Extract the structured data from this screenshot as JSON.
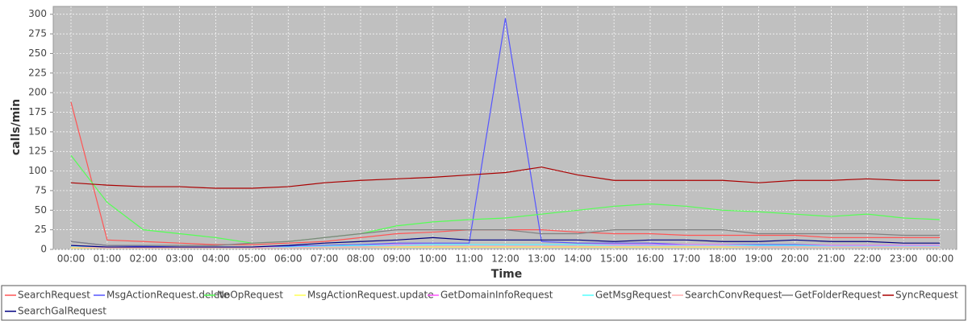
{
  "chart_data": {
    "type": "line",
    "x_label": "Time",
    "y_label": "calls/min",
    "categories": [
      "00:00",
      "01:00",
      "02:00",
      "03:00",
      "04:00",
      "05:00",
      "06:00",
      "07:00",
      "08:00",
      "09:00",
      "10:00",
      "11:00",
      "12:00",
      "13:00",
      "14:00",
      "15:00",
      "16:00",
      "17:00",
      "18:00",
      "19:00",
      "20:00",
      "21:00",
      "22:00",
      "23:00",
      "00:00"
    ],
    "ylim": [
      0,
      310
    ],
    "yticks": [
      0,
      25,
      50,
      75,
      100,
      125,
      150,
      175,
      200,
      225,
      250,
      275,
      300
    ],
    "grid": true,
    "legend": "bottom",
    "series": [
      {
        "name": "SearchRequest",
        "color": "#ff5555",
        "values": [
          188,
          12,
          10,
          8,
          6,
          6,
          8,
          10,
          15,
          20,
          22,
          25,
          25,
          25,
          22,
          20,
          20,
          18,
          18,
          18,
          18,
          15,
          15,
          15,
          15
        ]
      },
      {
        "name": "MsgActionRequest.delete",
        "color": "#5555ff",
        "values": [
          10,
          5,
          4,
          3,
          3,
          3,
          4,
          5,
          6,
          8,
          8,
          8,
          295,
          10,
          8,
          8,
          8,
          6,
          6,
          6,
          6,
          5,
          5,
          5,
          5
        ]
      },
      {
        "name": "NoOpRequest",
        "color": "#55ff55",
        "values": [
          120,
          60,
          25,
          20,
          15,
          8,
          10,
          15,
          20,
          30,
          35,
          38,
          40,
          45,
          50,
          55,
          58,
          55,
          50,
          48,
          45,
          42,
          45,
          40,
          38
        ]
      },
      {
        "name": "MsgActionRequest.update",
        "color": "#ffff55",
        "values": [
          2,
          2,
          2,
          2,
          2,
          2,
          3,
          3,
          3,
          3,
          3,
          3,
          3,
          3,
          3,
          3,
          3,
          3,
          3,
          3,
          3,
          3,
          3,
          3,
          3
        ]
      },
      {
        "name": "GetDomainInfoRequest",
        "color": "#ff55ff",
        "values": [
          5,
          3,
          3,
          3,
          3,
          3,
          3,
          4,
          5,
          6,
          6,
          6,
          6,
          6,
          6,
          6,
          6,
          6,
          6,
          5,
          5,
          5,
          5,
          5,
          5
        ]
      },
      {
        "name": "GetMsgRequest",
        "color": "#55ffff",
        "values": [
          4,
          3,
          3,
          2,
          2,
          2,
          3,
          4,
          5,
          5,
          6,
          6,
          6,
          6,
          6,
          5,
          5,
          5,
          5,
          5,
          5,
          4,
          4,
          4,
          4
        ]
      },
      {
        "name": "SearchConvRequest",
        "color": "#ffafaf",
        "values": [
          3,
          2,
          2,
          2,
          2,
          2,
          2,
          3,
          3,
          4,
          4,
          4,
          4,
          4,
          4,
          4,
          4,
          4,
          4,
          3,
          3,
          3,
          3,
          3,
          3
        ]
      },
      {
        "name": "GetFolderRequest",
        "color": "#808080",
        "values": [
          10,
          5,
          5,
          5,
          5,
          8,
          10,
          15,
          20,
          25,
          25,
          25,
          25,
          20,
          20,
          25,
          25,
          25,
          25,
          20,
          20,
          20,
          20,
          18,
          18
        ]
      },
      {
        "name": "SyncRequest",
        "color": "#aa0000",
        "values": [
          85,
          82,
          80,
          80,
          78,
          78,
          80,
          85,
          88,
          90,
          92,
          95,
          98,
          105,
          95,
          88,
          88,
          88,
          88,
          85,
          88,
          88,
          90,
          88,
          88
        ]
      },
      {
        "name": "SearchGalRequest",
        "color": "#000080",
        "values": [
          5,
          3,
          3,
          3,
          3,
          3,
          5,
          8,
          10,
          12,
          15,
          12,
          12,
          12,
          12,
          10,
          12,
          12,
          10,
          10,
          12,
          10,
          10,
          8,
          8
        ]
      }
    ]
  }
}
